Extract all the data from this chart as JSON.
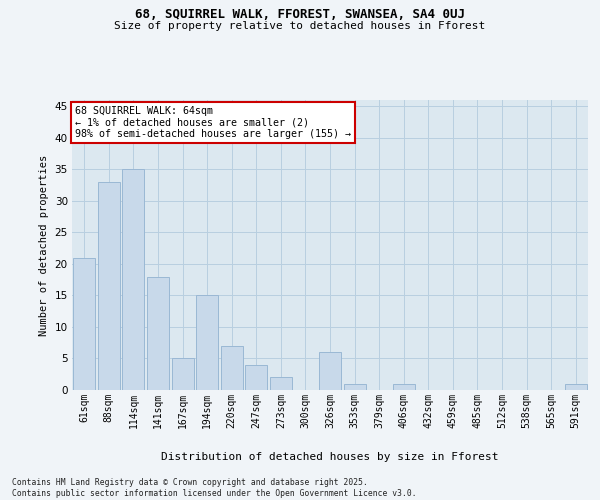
{
  "title1": "68, SQUIRREL WALK, FFOREST, SWANSEA, SA4 0UJ",
  "title2": "Size of property relative to detached houses in Fforest",
  "xlabel": "Distribution of detached houses by size in Fforest",
  "ylabel": "Number of detached properties",
  "categories": [
    "61sqm",
    "88sqm",
    "114sqm",
    "141sqm",
    "167sqm",
    "194sqm",
    "220sqm",
    "247sqm",
    "273sqm",
    "300sqm",
    "326sqm",
    "353sqm",
    "379sqm",
    "406sqm",
    "432sqm",
    "459sqm",
    "485sqm",
    "512sqm",
    "538sqm",
    "565sqm",
    "591sqm"
  ],
  "values": [
    21,
    33,
    35,
    18,
    5,
    15,
    7,
    4,
    2,
    0,
    6,
    1,
    0,
    1,
    0,
    0,
    0,
    0,
    0,
    0,
    1
  ],
  "bar_color": "#c8d9ea",
  "bar_edge_color": "#9ab8d4",
  "annotation_text": "68 SQUIRREL WALK: 64sqm\n← 1% of detached houses are smaller (2)\n98% of semi-detached houses are larger (155) →",
  "annotation_box_color": "#ffffff",
  "annotation_box_edgecolor": "#cc0000",
  "ylim": [
    0,
    46
  ],
  "yticks": [
    0,
    5,
    10,
    15,
    20,
    25,
    30,
    35,
    40,
    45
  ],
  "grid_color": "#b8cfe0",
  "bg_color": "#dce8f0",
  "fig_color": "#f0f4f8",
  "footer_line1": "Contains HM Land Registry data © Crown copyright and database right 2025.",
  "footer_line2": "Contains public sector information licensed under the Open Government Licence v3.0."
}
